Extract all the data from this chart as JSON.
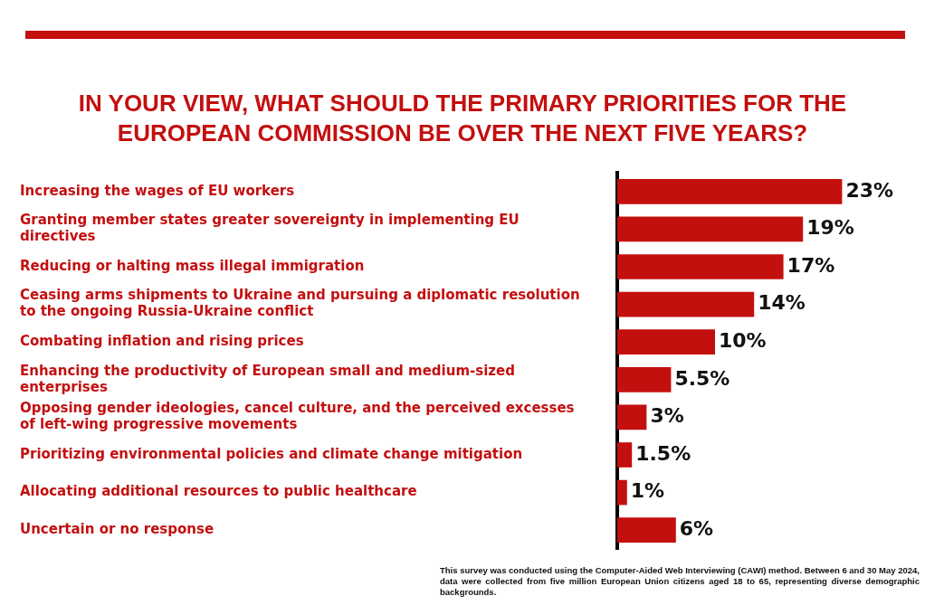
{
  "chart_data": {
    "type": "bar",
    "orientation": "horizontal",
    "title": "IN YOUR VIEW, WHAT SHOULD THE PRIMARY PRIORITIES FOR THE EUROPEAN COMMISSION BE OVER THE NEXT FIVE YEARS?",
    "categories": [
      "Increasing the wages of EU workers",
      "Granting member states greater sovereignty in implementing EU directives",
      "Reducing or halting mass illegal immigration",
      "Ceasing arms shipments to Ukraine and pursuing a diplomatic resolution to the ongoing Russia-Ukraine conflict",
      "Combating inflation and rising prices",
      "Enhancing the productivity of European small and medium-sized enterprises",
      "Opposing gender ideologies, cancel culture, and the perceived excesses of left-wing progressive movements",
      "Prioritizing environmental policies and climate change mitigation",
      "Allocating additional resources to public healthcare",
      "Uncertain or no response"
    ],
    "values": [
      23,
      19,
      17,
      14,
      10,
      5.5,
      3,
      1.5,
      1,
      6
    ],
    "value_labels": [
      "23%",
      "19%",
      "17%",
      "14%",
      "10%",
      "5.5%",
      "3%",
      "1.5%",
      "1%",
      "6%"
    ],
    "color": "#c40f0f",
    "tick_labels": "y",
    "grid": false,
    "legend": false,
    "annotations": [
      "This survey was conducted using the Computer-Aided Web Interviewing (CAWI) method. Between 6 and 30 May 2024, data were collected from five million European Union citizens aged 18 to 65, representing diverse demographic backgrounds."
    ]
  }
}
